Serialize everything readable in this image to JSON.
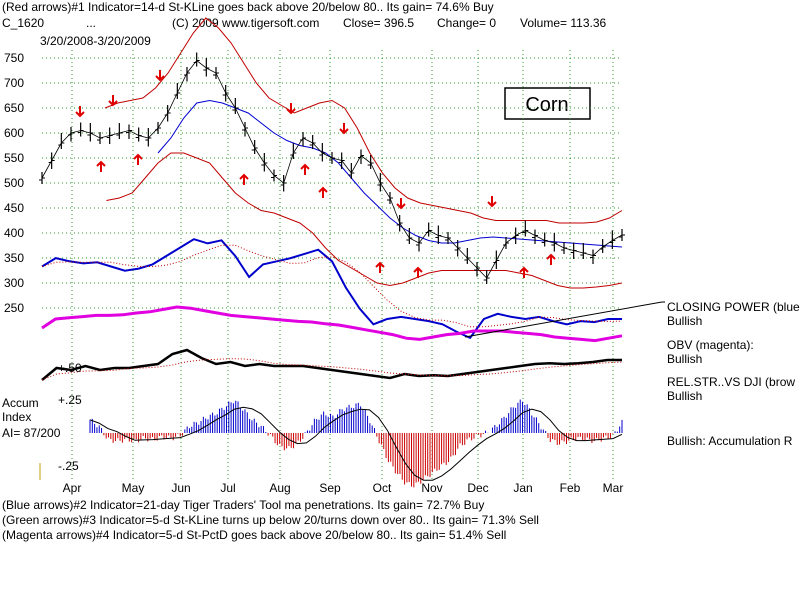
{
  "header": {
    "line1": "(Red arrows)#1 Indicator=14-d St-KLine goes back above 20/below 80..  Its gain= 74.6% Buy",
    "symbol": "C_1620",
    "dots": "...",
    "copyright": "(C) 2009 www.tigersoft.com",
    "close": "Close=  396.5",
    "change": "Change= 0",
    "volume": "Volume= 113.36",
    "date_range": "3/20/2008-3/20/2009"
  },
  "title_box": "Corn",
  "right_labels": {
    "closing_power_l1": "CLOSING POWER (blue",
    "closing_power_l2": "Bullish",
    "obv_l1": "OBV (magenta):",
    "obv_l2": "Bullish",
    "relstr_l1": "REL.STR..VS DJI (brow",
    "relstr_l2": "Bullish",
    "accum_summary": "Bullish: Accumulation R"
  },
  "left_labels": {
    "accum": "Accum",
    "index": "Index",
    "ai": "AI= 87/200",
    "relstr_tick": "+.50",
    "accum_top": "+.25",
    "accum_bottom": "-.25"
  },
  "footer": {
    "line1": "(Blue arrows)#2 Indicator=21-day Tiger Traders' Tool ma penetrations.  Its gain= 72.7% Buy",
    "line2": "(Green arrows)#3 Indicator=5-d St-KLine turns up below 20/turns down over 80..  Its gain= 71.3% Sell",
    "line3": "(Magenta arrows)#4 Indicator=5-d St-PctD goes back above 20/below 80..  Its gain= 51.4% Sell"
  },
  "colors": {
    "price": "#000000",
    "bands": "#c00000",
    "ma": "#0000d0",
    "closing_power": "#0000cc",
    "obv": "#e000e0",
    "relstr": "#000000",
    "accum_pos": "#0000cc",
    "accum_neg": "#cc0000",
    "signal": "#e00000",
    "grid": "#2a9a2a"
  },
  "chart_data": {
    "type": "line",
    "y_ticks": [
      750,
      700,
      650,
      600,
      550,
      500,
      450,
      400,
      350,
      300,
      250
    ],
    "months": [
      "Apr",
      "May",
      "Jun",
      "Jul",
      "Aug",
      "Sep",
      "Oct",
      "Nov",
      "Dec",
      "Jan",
      "Feb",
      "Mar"
    ],
    "ylim": [
      240,
      780
    ],
    "grid": true,
    "price_close": [
      510,
      545,
      580,
      600,
      605,
      600,
      590,
      595,
      600,
      605,
      595,
      590,
      610,
      640,
      680,
      720,
      745,
      730,
      720,
      680,
      650,
      610,
      570,
      540,
      515,
      500,
      560,
      590,
      580,
      560,
      550,
      545,
      520,
      555,
      540,
      500,
      470,
      420,
      390,
      380,
      405,
      395,
      390,
      370,
      350,
      330,
      310,
      345,
      380,
      395,
      405,
      395,
      385,
      380,
      370,
      365,
      360,
      355,
      372,
      385,
      396
    ],
    "upper_band": [
      null,
      null,
      null,
      null,
      null,
      650,
      660,
      665,
      670,
      690,
      720,
      760,
      800,
      830,
      810,
      780,
      740,
      700,
      670,
      655,
      640,
      650,
      660,
      665,
      650,
      610,
      560,
      520,
      490,
      470,
      460,
      455,
      450,
      445,
      440,
      430,
      425,
      425,
      425,
      425,
      425,
      420,
      420,
      420,
      422,
      430,
      445
    ],
    "ma": [
      null,
      null,
      null,
      null,
      null,
      null,
      null,
      null,
      null,
      560,
      590,
      630,
      660,
      665,
      660,
      650,
      640,
      620,
      600,
      585,
      575,
      570,
      560,
      540,
      510,
      480,
      455,
      430,
      410,
      395,
      385,
      380,
      380,
      385,
      390,
      392,
      390,
      388,
      386,
      384,
      382,
      380,
      378,
      376,
      374,
      372
    ],
    "lower_band": [
      null,
      null,
      null,
      null,
      null,
      465,
      470,
      480,
      510,
      540,
      560,
      560,
      550,
      540,
      510,
      480,
      460,
      445,
      440,
      430,
      420,
      400,
      370,
      345,
      330,
      315,
      300,
      295,
      300,
      310,
      320,
      325,
      325,
      325,
      325,
      325,
      325,
      320,
      315,
      305,
      295,
      290,
      290,
      292,
      295,
      300
    ],
    "closing_power": [
      0.7,
      0.78,
      0.75,
      0.73,
      0.74,
      0.7,
      0.66,
      0.68,
      0.72,
      0.8,
      0.88,
      0.96,
      0.92,
      0.95,
      0.8,
      0.6,
      0.72,
      0.75,
      0.78,
      0.82,
      0.86,
      0.75,
      0.5,
      0.3,
      0.15,
      0.2,
      0.22,
      0.2,
      0.18,
      0.15,
      0.08,
      0.02,
      0.2,
      0.25,
      0.22,
      0.2,
      0.22,
      0.18,
      0.15,
      0.18,
      0.17,
      0.2,
      0.2
    ],
    "obv": [
      0.45,
      0.6,
      0.62,
      0.64,
      0.66,
      0.66,
      0.67,
      0.7,
      0.72,
      0.76,
      0.8,
      0.78,
      0.74,
      0.7,
      0.66,
      0.64,
      0.62,
      0.6,
      0.58,
      0.56,
      0.55,
      0.52,
      0.5,
      0.46,
      0.42,
      0.38,
      0.34,
      0.28,
      0.26,
      0.3,
      0.34,
      0.36,
      0.4,
      0.4,
      0.4,
      0.38,
      0.36,
      0.34,
      0.3,
      0.28,
      0.26,
      0.24,
      0.28,
      0.32
    ],
    "relstr": [
      0.2,
      0.5,
      0.45,
      0.55,
      0.45,
      0.5,
      0.5,
      0.55,
      0.6,
      0.85,
      0.95,
      0.75,
      0.6,
      0.65,
      0.55,
      0.6,
      0.55,
      0.55,
      0.55,
      0.5,
      0.45,
      0.4,
      0.35,
      0.3,
      0.25,
      0.35,
      0.3,
      0.32,
      0.3,
      0.35,
      0.4,
      0.45,
      0.5,
      0.55,
      0.6,
      0.62,
      0.6,
      0.62,
      0.65,
      0.7,
      0.7
    ],
    "accum_index": [
      0.1,
      0.05,
      -0.05,
      -0.06,
      -0.05,
      -0.06,
      -0.04,
      -0.05,
      -0.03,
      -0.04,
      -0.02,
      0.05,
      0.08,
      0.12,
      0.15,
      0.2,
      0.25,
      0.18,
      0.1,
      0.05,
      -0.02,
      -0.1,
      -0.12,
      -0.08,
      0.0,
      0.1,
      0.15,
      0.12,
      0.18,
      0.2,
      0.22,
      0.1,
      -0.05,
      -0.2,
      -0.3,
      -0.38,
      -0.4,
      -0.35,
      -0.3,
      -0.25,
      -0.2,
      -0.1,
      -0.05,
      -0.02,
      0.0,
      0.05,
      0.12,
      0.2,
      0.25,
      0.15,
      0.05,
      -0.05,
      -0.08,
      -0.06,
      -0.04,
      -0.05,
      -0.06,
      -0.04,
      -0.02,
      0.08
    ],
    "red_arrows_down": [
      [
        80,
        116
      ],
      [
        113,
        105
      ],
      [
        160,
        80
      ],
      [
        291,
        113
      ],
      [
        344,
        133
      ],
      [
        401,
        208
      ],
      [
        492,
        206
      ]
    ],
    "red_arrows_up": [
      [
        101,
        162
      ],
      [
        138,
        155
      ],
      [
        244,
        175
      ],
      [
        305,
        165
      ],
      [
        323,
        188
      ],
      [
        380,
        263
      ],
      [
        418,
        268
      ],
      [
        524,
        268
      ],
      [
        551,
        255
      ]
    ]
  }
}
